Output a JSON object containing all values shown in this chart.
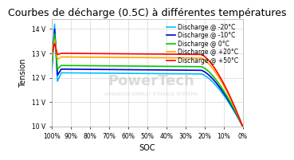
{
  "title": "Courbes de décharge (0.5C) à différentes températures",
  "xlabel": "SOC",
  "ylabel": "Tension",
  "ylim": [
    10,
    14.4
  ],
  "yticks": [
    10,
    11,
    12,
    13,
    14
  ],
  "ytick_labels": [
    "10 V",
    "11 V",
    "12 V",
    "13 V",
    "14 V"
  ],
  "xticks": [
    0,
    10,
    20,
    30,
    40,
    50,
    60,
    70,
    80,
    90,
    100
  ],
  "xtick_labels": [
    "0%",
    "10%",
    "20%",
    "30%",
    "40%",
    "50%",
    "60%",
    "70%",
    "80%",
    "90%",
    "100%"
  ],
  "curves": [
    {
      "label": "Discharge @ -20°C",
      "color": "#00bfff",
      "peak_voltage": 14.2,
      "flat_voltage": 12.2,
      "dip_voltage": 11.85,
      "end_voltage": 10.0
    },
    {
      "label": "Discharge @ -10°C",
      "color": "#0000cd",
      "peak_voltage": 14.0,
      "flat_voltage": 12.35,
      "dip_voltage": 12.1,
      "end_voltage": 10.0
    },
    {
      "label": "Discharge @ 0°C",
      "color": "#00c800",
      "peak_voltage": 13.8,
      "flat_voltage": 12.5,
      "dip_voltage": 12.35,
      "end_voltage": 10.0
    },
    {
      "label": "Discharge @ +20°C",
      "color": "#ffa500",
      "peak_voltage": 13.55,
      "flat_voltage": 12.85,
      "dip_voltage": 12.75,
      "end_voltage": 10.0
    },
    {
      "label": "Discharge @ +50°C",
      "color": "#ff0000",
      "peak_voltage": 13.4,
      "flat_voltage": 13.0,
      "dip_voltage": 12.95,
      "end_voltage": 10.0
    }
  ],
  "background_color": "#ffffff",
  "grid_color": "#cccccc",
  "watermark_text1": "PowerTech",
  "watermark_text2": "ADVANCED ENERGY STORAGE SYSTEMS",
  "title_fontsize": 9,
  "axis_fontsize": 7,
  "tick_fontsize": 5.5,
  "legend_fontsize": 5.5
}
